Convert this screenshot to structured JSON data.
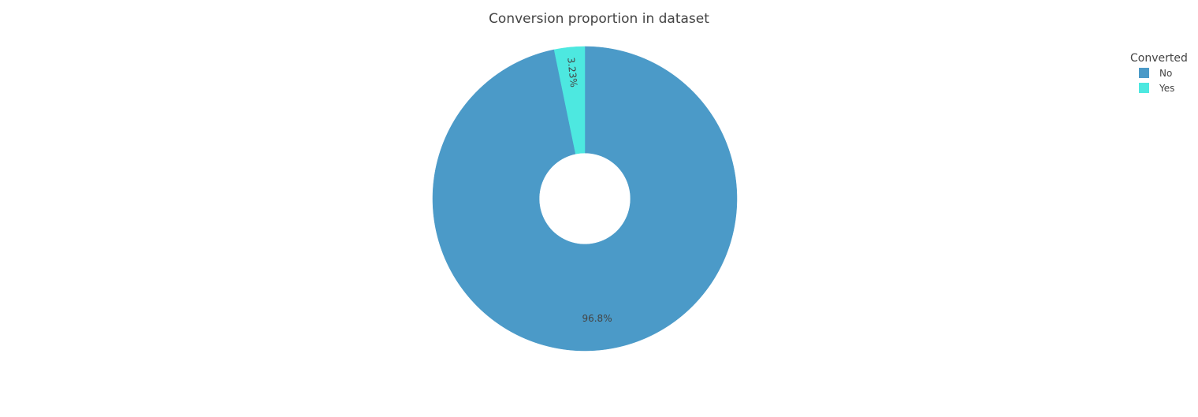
{
  "chart_data": {
    "type": "pie",
    "title": "Conversion proportion in dataset",
    "legend": {
      "title": "Converted",
      "placement": "top-right"
    },
    "hole_fraction": 0.3,
    "direction": "clockwise",
    "start_angle_deg": 0,
    "slices": [
      {
        "label": "No",
        "value": 96.77,
        "text": "96.8%",
        "color": "#4b9ac8"
      },
      {
        "label": "Yes",
        "value": 3.23,
        "text": "3.23%",
        "color": "#4de8e0"
      }
    ]
  }
}
